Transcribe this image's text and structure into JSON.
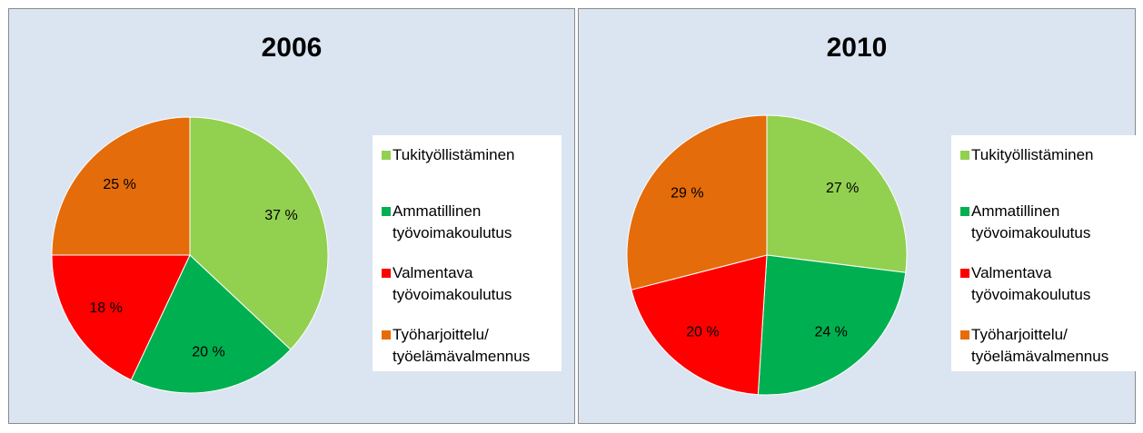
{
  "chart_data": [
    {
      "type": "pie",
      "title": "2006",
      "categories": [
        "Tukityöllistäminen",
        "Ammatillinen työvoimakoulutus",
        "Valmentava työvoimakoulutus",
        "Työharjoittelu/ työelämävalmennus"
      ],
      "values": [
        37,
        20,
        18,
        25
      ],
      "value_labels": [
        "37 %",
        "20 %",
        "18 %",
        "25 %"
      ],
      "colors": [
        "#92d050",
        "#00b050",
        "#ff0000",
        "#e46c0a"
      ]
    },
    {
      "type": "pie",
      "title": "2010",
      "categories": [
        "Tukityöllistäminen",
        "Ammatillinen työvoimakoulutus",
        "Valmentava työvoimakoulutus",
        "Työharjoittelu/ työelämävalmennus"
      ],
      "values": [
        27,
        24,
        20,
        29
      ],
      "value_labels": [
        "27 %",
        "24 %",
        "20 %",
        "29 %"
      ],
      "colors": [
        "#92d050",
        "#00b050",
        "#ff0000",
        "#e46c0a"
      ]
    }
  ]
}
